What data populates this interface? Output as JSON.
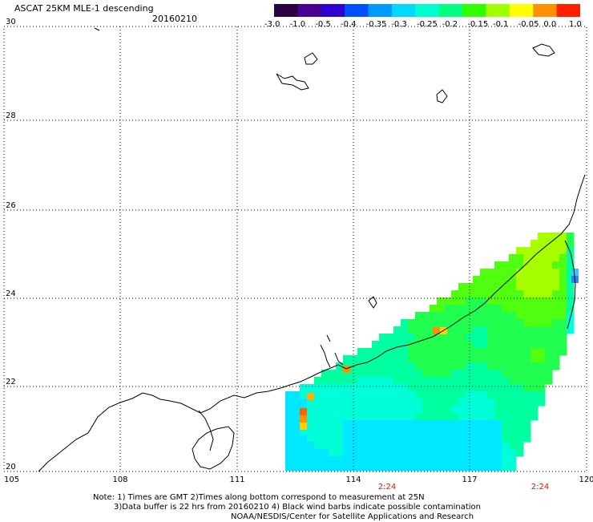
{
  "header": {
    "title": "ASCAT 25KM MLE-1 descending",
    "date": "20160210"
  },
  "colorbar": {
    "labels": [
      "-3.0",
      "-1.0",
      "-0.5",
      "-0.4",
      "-0.35",
      "-0.3",
      "-0.25",
      "-0.2",
      "-0.15",
      "-0.1",
      "-0.05",
      "0.0",
      "1.0"
    ],
    "colors": [
      "#2a0040",
      "#4a0090",
      "#3000d0",
      "#0050ff",
      "#0098ff",
      "#00d8ff",
      "#00ffd0",
      "#00ff80",
      "#30ff00",
      "#a0ff00",
      "#ffff00",
      "#ff9000",
      "#ff2000"
    ]
  },
  "map": {
    "x_ticks": [
      "105",
      "108",
      "111",
      "114",
      "117",
      "120"
    ],
    "y_ticks": [
      "30",
      "28",
      "26",
      "24",
      "22",
      "20"
    ],
    "time_labels": [
      {
        "text": "2:24",
        "color": "#cc2200"
      },
      {
        "text": "2:24",
        "color": "#cc2200"
      }
    ]
  },
  "notes": {
    "line1": "Note: 1) Times are GMT 2)Times along bottom correspond to measurement at 25N",
    "line2": "3)Data buffer is 22 hrs from 20160210 4) Black wind barbs indicate possible contamination",
    "line3": "NOAA/NESDIS/Center for Satellite Applications and Research"
  }
}
